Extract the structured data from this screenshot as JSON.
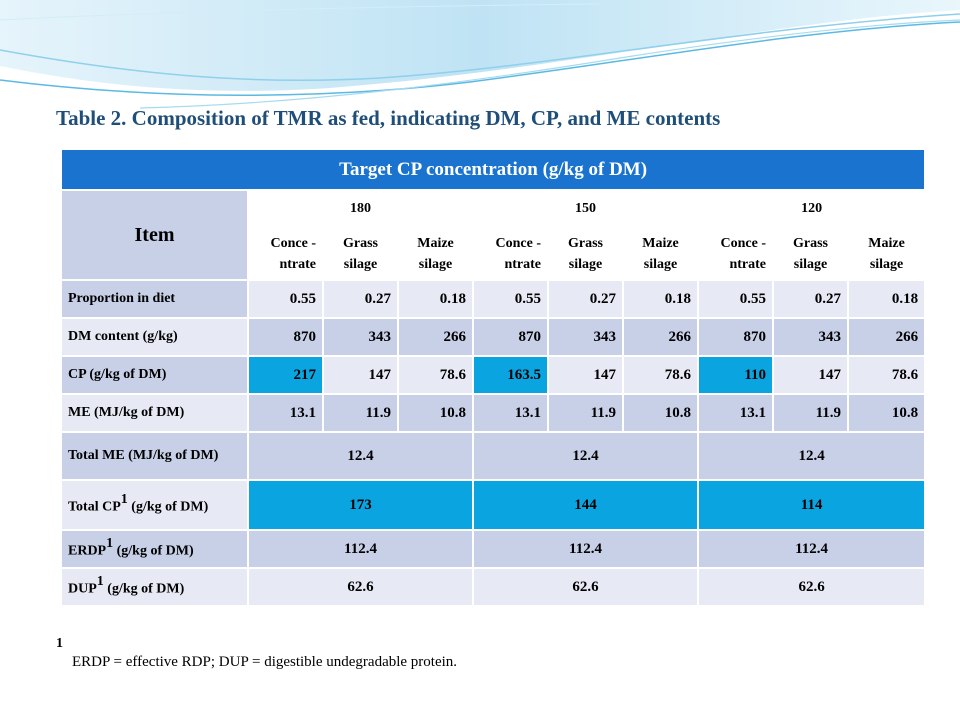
{
  "title": "Table 2. Composition of TMR as fed, indicating DM, CP, and ME contents",
  "table": {
    "header": "Target CP concentration (g/kg of DM)",
    "item_label": "Item",
    "groups": [
      "180",
      "150",
      "120"
    ],
    "subheaders": [
      "Conce -ntrate",
      "Grass silage",
      "Maize silage",
      "Conce -ntrate",
      "Grass silage",
      "Maize silage",
      "Conce -ntrate",
      "Grass silage",
      "Maize silage"
    ],
    "rows": [
      {
        "label": "Proportion in diet",
        "values": [
          "0.55",
          "0.27",
          "0.18",
          "0.55",
          "0.27",
          "0.18",
          "0.55",
          "0.27",
          "0.18"
        ]
      },
      {
        "label": "DM content (g/kg)",
        "values": [
          "870",
          "343",
          "266",
          "870",
          "343",
          "266",
          "870",
          "343",
          "266"
        ]
      },
      {
        "label": "CP (g/kg of DM)",
        "values": [
          "217",
          "147",
          "78.6",
          "163.5",
          "147",
          "78.6",
          "110",
          "147",
          "78.6"
        ]
      },
      {
        "label": "ME (MJ/kg of DM)",
        "values": [
          "13.1",
          "11.9",
          "10.8",
          "13.1",
          "11.9",
          "10.8",
          "13.1",
          "11.9",
          "10.8"
        ]
      }
    ],
    "totals": [
      {
        "label": "Total ME (MJ/kg of DM)",
        "sup": "",
        "values": [
          "12.4",
          "12.4",
          "12.4"
        ]
      },
      {
        "label_pre": "Total CP",
        "sup": "1",
        "label_post": " (g/kg of DM)",
        "values": [
          "173",
          "144",
          "114"
        ]
      },
      {
        "label_pre": "ERDP",
        "sup": "1",
        "label_post": " (g/kg of DM)",
        "values": [
          "112.4",
          "112.4",
          "112.4"
        ]
      },
      {
        "label_pre": "DUP",
        "sup": "1",
        "label_post": " (g/kg of DM)",
        "values": [
          "62.6",
          "62.6",
          "62.6"
        ]
      }
    ]
  },
  "footnote": {
    "marker": "1",
    "text": "ERDP = effective RDP; DUP = digestible undegradable protein."
  },
  "colors": {
    "header_blue": "#1a73cf",
    "highlight_cyan": "#0aa5e0",
    "row_dark": "#c8d0e8",
    "row_light": "#e7eaf5"
  }
}
